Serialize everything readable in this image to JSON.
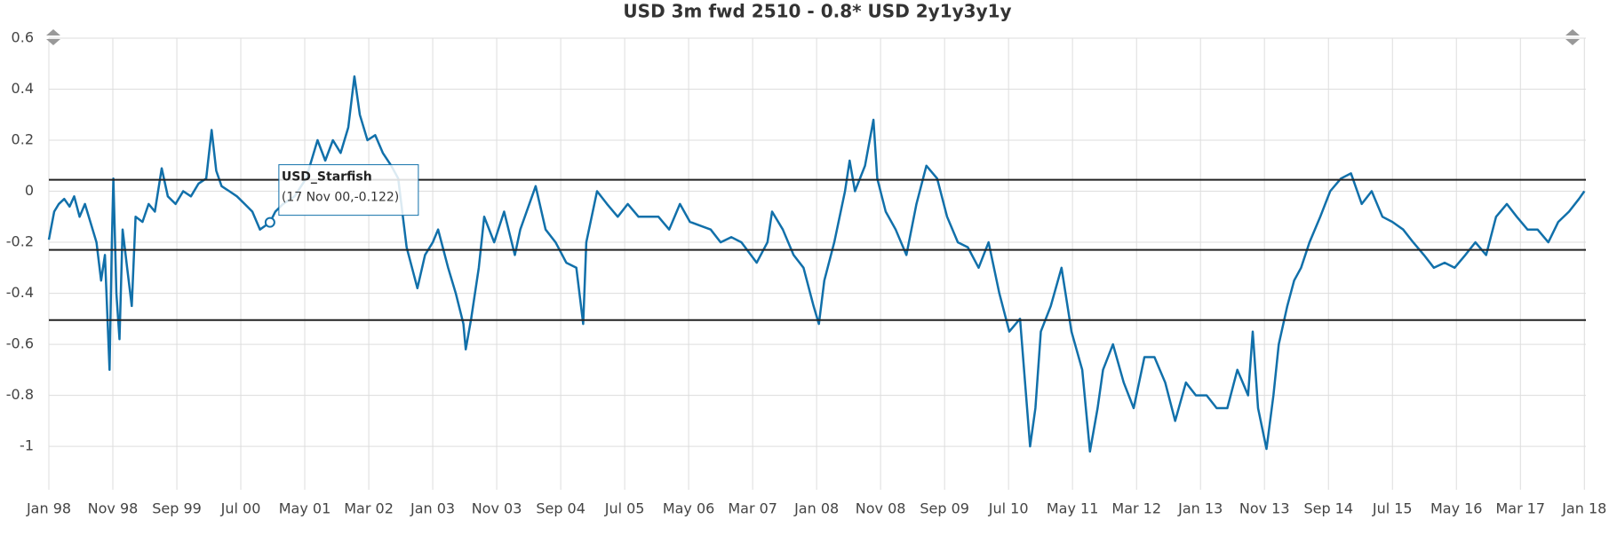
{
  "chart_data": {
    "type": "line",
    "title": "USD 3m fwd 2510 - 0.8* USD 2y1y3y1y",
    "xlim": [
      1998.0,
      2018.02
    ],
    "ylim": [
      -1.17,
      0.6
    ],
    "yticks": [
      0.6,
      0.4,
      0.2,
      0,
      -0.2,
      -0.4,
      -0.6,
      -0.8,
      -1
    ],
    "xticks": [
      {
        "value": 1998.0,
        "label": "Jan 98"
      },
      {
        "value": 1998.833,
        "label": "Nov 98"
      },
      {
        "value": 1999.667,
        "label": "Sep 99"
      },
      {
        "value": 2000.5,
        "label": "Jul 00"
      },
      {
        "value": 2001.333,
        "label": "May 01"
      },
      {
        "value": 2002.167,
        "label": "Mar 02"
      },
      {
        "value": 2003.0,
        "label": "Jan 03"
      },
      {
        "value": 2003.833,
        "label": "Nov 03"
      },
      {
        "value": 2004.667,
        "label": "Sep 04"
      },
      {
        "value": 2005.5,
        "label": "Jul 05"
      },
      {
        "value": 2006.333,
        "label": "May 06"
      },
      {
        "value": 2007.167,
        "label": "Mar 07"
      },
      {
        "value": 2008.0,
        "label": "Jan 08"
      },
      {
        "value": 2008.833,
        "label": "Nov 08"
      },
      {
        "value": 2009.667,
        "label": "Sep 09"
      },
      {
        "value": 2010.5,
        "label": "Jul 10"
      },
      {
        "value": 2011.333,
        "label": "May 11"
      },
      {
        "value": 2012.167,
        "label": "Mar 12"
      },
      {
        "value": 2013.0,
        "label": "Jan 13"
      },
      {
        "value": 2013.833,
        "label": "Nov 13"
      },
      {
        "value": 2014.667,
        "label": "Sep 14"
      },
      {
        "value": 2015.5,
        "label": "Jul 15"
      },
      {
        "value": 2016.333,
        "label": "May 16"
      },
      {
        "value": 2017.167,
        "label": "Mar 17"
      },
      {
        "value": 2018.0,
        "label": "Jan 18"
      }
    ],
    "grid": true,
    "hlines": [
      0.045,
      -0.23,
      -0.505
    ],
    "x": [
      1998.0,
      1998.07,
      1998.13,
      1998.2,
      1998.27,
      1998.33,
      1998.4,
      1998.47,
      1998.54,
      1998.62,
      1998.68,
      1998.73,
      1998.79,
      1998.82,
      1998.84,
      1998.88,
      1998.92,
      1998.96,
      1999.02,
      1999.08,
      1999.13,
      1999.22,
      1999.3,
      1999.38,
      1999.47,
      1999.55,
      1999.65,
      1999.75,
      1999.85,
      1999.95,
      2000.05,
      2000.12,
      2000.18,
      2000.25,
      2000.35,
      2000.45,
      2000.55,
      2000.65,
      2000.75,
      2000.88,
      2000.95,
      2001.05,
      2001.2,
      2001.35,
      2001.5,
      2001.6,
      2001.7,
      2001.8,
      2001.9,
      2001.98,
      2002.05,
      2002.15,
      2002.25,
      2002.35,
      2002.46,
      2002.55,
      2002.66,
      2002.8,
      2002.9,
      2003.0,
      2003.07,
      2003.2,
      2003.3,
      2003.4,
      2003.43,
      2003.5,
      2003.6,
      2003.67,
      2003.8,
      2003.93,
      2004.07,
      2004.14,
      2004.34,
      2004.47,
      2004.6,
      2004.74,
      2004.87,
      2004.96,
      2005.0,
      2005.14,
      2005.27,
      2005.41,
      2005.54,
      2005.68,
      2005.94,
      2006.08,
      2006.22,
      2006.35,
      2006.62,
      2006.75,
      2006.89,
      2007.02,
      2007.22,
      2007.36,
      2007.42,
      2007.56,
      2007.7,
      2007.83,
      2007.96,
      2008.03,
      2008.1,
      2008.23,
      2008.37,
      2008.43,
      2008.5,
      2008.63,
      2008.74,
      2008.79,
      2008.9,
      2009.03,
      2009.17,
      2009.3,
      2009.43,
      2009.57,
      2009.7,
      2009.84,
      2009.97,
      2010.11,
      2010.24,
      2010.38,
      2010.51,
      2010.65,
      2010.78,
      2010.85,
      2010.92,
      2011.05,
      2011.19,
      2011.32,
      2011.46,
      2011.56,
      2011.66,
      2011.73,
      2011.86,
      2012.0,
      2012.13,
      2012.27,
      2012.4,
      2012.54,
      2012.67,
      2012.81,
      2012.94,
      2013.08,
      2013.21,
      2013.35,
      2013.48,
      2013.62,
      2013.68,
      2013.75,
      2013.86,
      2013.95,
      2014.02,
      2014.13,
      2014.22,
      2014.31,
      2014.42,
      2014.56,
      2014.69,
      2014.83,
      2014.96,
      2015.1,
      2015.23,
      2015.37,
      2015.5,
      2015.64,
      2015.77,
      2015.91,
      2016.04,
      2016.18,
      2016.31,
      2016.45,
      2016.58,
      2016.72,
      2016.85,
      2016.99,
      2017.12,
      2017.26,
      2017.39,
      2017.53,
      2017.66,
      2017.8,
      2017.93,
      2018.0
    ],
    "series": [
      {
        "name": "USD_Starfish",
        "color": "#1170aa",
        "values": [
          -0.19,
          -0.08,
          -0.05,
          -0.03,
          -0.06,
          -0.02,
          -0.1,
          -0.05,
          -0.12,
          -0.2,
          -0.35,
          -0.25,
          -0.7,
          -0.2,
          0.05,
          -0.4,
          -0.58,
          -0.15,
          -0.3,
          -0.45,
          -0.1,
          -0.12,
          -0.05,
          -0.08,
          0.09,
          -0.02,
          -0.05,
          0.0,
          -0.02,
          0.03,
          0.05,
          0.24,
          0.08,
          0.02,
          0.0,
          -0.02,
          -0.05,
          -0.08,
          -0.15,
          -0.122,
          -0.08,
          -0.05,
          -0.02,
          0.05,
          0.2,
          0.12,
          0.2,
          0.15,
          0.25,
          0.45,
          0.3,
          0.2,
          0.22,
          0.15,
          0.1,
          0.05,
          -0.22,
          -0.38,
          -0.25,
          -0.2,
          -0.15,
          -0.3,
          -0.4,
          -0.52,
          -0.62,
          -0.5,
          -0.3,
          -0.1,
          -0.2,
          -0.08,
          -0.25,
          -0.15,
          0.02,
          -0.15,
          -0.2,
          -0.28,
          -0.3,
          -0.52,
          -0.2,
          0.0,
          -0.05,
          -0.1,
          -0.05,
          -0.1,
          -0.1,
          -0.15,
          -0.05,
          -0.12,
          -0.15,
          -0.2,
          -0.18,
          -0.2,
          -0.28,
          -0.2,
          -0.08,
          -0.15,
          -0.25,
          -0.3,
          -0.45,
          -0.52,
          -0.35,
          -0.2,
          0.0,
          0.12,
          0.0,
          0.1,
          0.28,
          0.05,
          -0.08,
          -0.15,
          -0.25,
          -0.05,
          0.1,
          0.05,
          -0.1,
          -0.2,
          -0.22,
          -0.3,
          -0.2,
          -0.4,
          -0.55,
          -0.5,
          -1.0,
          -0.85,
          -0.55,
          -0.45,
          -0.3,
          -0.55,
          -0.7,
          -1.02,
          -0.85,
          -0.7,
          -0.6,
          -0.75,
          -0.85,
          -0.65,
          -0.65,
          -0.75,
          -0.9,
          -0.75,
          -0.8,
          -0.8,
          -0.85,
          -0.85,
          -0.7,
          -0.8,
          -0.55,
          -0.85,
          -1.01,
          -0.8,
          -0.6,
          -0.45,
          -0.35,
          -0.3,
          -0.2,
          -0.1,
          0.0,
          0.05,
          0.07,
          -0.05,
          0.0,
          -0.1,
          -0.12,
          -0.15,
          -0.2,
          -0.25,
          -0.3,
          -0.28,
          -0.3,
          -0.25,
          -0.2,
          -0.25,
          -0.1,
          -0.05,
          -0.1,
          -0.15,
          -0.15,
          -0.2,
          -0.12,
          -0.08,
          -0.03,
          0.0
        ]
      }
    ],
    "tooltip": {
      "name": "USD_Starfish",
      "text": "(17 Nov 00,-0.122)",
      "x": 2000.88,
      "y": -0.122
    }
  }
}
